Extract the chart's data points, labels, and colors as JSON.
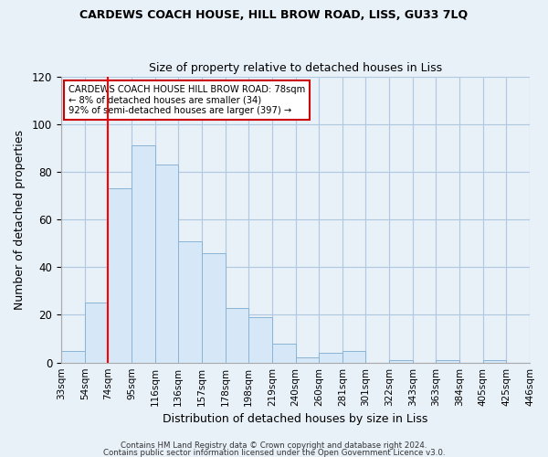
{
  "title": "CARDEWS COACH HOUSE, HILL BROW ROAD, LISS, GU33 7LQ",
  "subtitle": "Size of property relative to detached houses in Liss",
  "xlabel": "Distribution of detached houses by size in Liss",
  "ylabel": "Number of detached properties",
  "bar_values": [
    5,
    25,
    73,
    91,
    83,
    51,
    46,
    23,
    19,
    8,
    2,
    4,
    5,
    0,
    1,
    0,
    1,
    0,
    1,
    0
  ],
  "bin_labels": [
    "33sqm",
    "54sqm",
    "74sqm",
    "95sqm",
    "116sqm",
    "136sqm",
    "157sqm",
    "178sqm",
    "198sqm",
    "219sqm",
    "240sqm",
    "260sqm",
    "281sqm",
    "301sqm",
    "322sqm",
    "343sqm",
    "363sqm",
    "384sqm",
    "405sqm",
    "425sqm",
    "446sqm"
  ],
  "bar_color": "#d6e8f7",
  "bar_edge_color": "#8ab4d4",
  "vline_x_index": 2,
  "vline_color": "red",
  "annotation_title": "CARDEWS COACH HOUSE HILL BROW ROAD: 78sqm",
  "annotation_line1": "← 8% of detached houses are smaller (34)",
  "annotation_line2": "92% of semi-detached houses are larger (397) →",
  "annotation_box_color": "#ffffff",
  "annotation_box_edge": "#cc0000",
  "ylim": [
    0,
    120
  ],
  "yticks": [
    0,
    20,
    40,
    60,
    80,
    100,
    120
  ],
  "footer1": "Contains HM Land Registry data © Crown copyright and database right 2024.",
  "footer2": "Contains public sector information licensed under the Open Government Licence v3.0.",
  "background_color": "#e8f0f8",
  "grid_color": "#b0c8e0"
}
